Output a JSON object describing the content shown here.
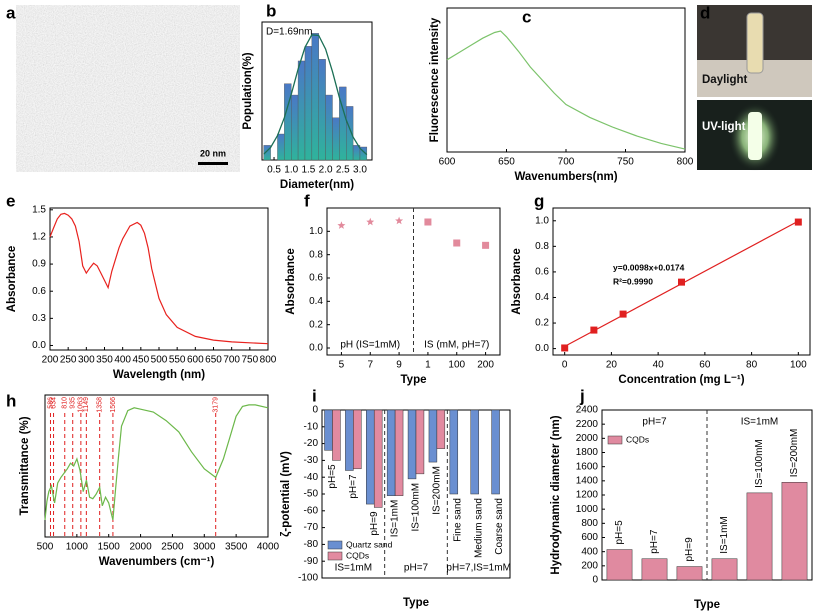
{
  "chart_data": [
    {
      "type": "image",
      "label": "a",
      "scale_bar": "20 nm"
    },
    {
      "type": "histogram",
      "label": "b",
      "xlabel": "Diameter(nm)",
      "ylabel": "Population(%)",
      "annotation": "D=1.69nm",
      "bins": [
        0.2,
        0.4,
        0.6,
        0.8,
        1.0,
        1.2,
        1.4,
        1.6,
        1.8,
        2.0,
        2.2,
        2.4,
        2.6,
        2.8,
        3.0,
        3.2
      ],
      "counts": [
        9,
        0,
        16,
        47,
        40,
        61,
        70,
        78,
        62,
        40,
        26,
        45,
        33,
        9,
        8
      ],
      "colors": [
        "#4a78c6",
        "#2fb39c"
      ],
      "fit_color": "#1b6f55",
      "fit": {
        "x": [
          0.2,
          0.4,
          0.6,
          0.8,
          1.0,
          1.2,
          1.4,
          1.6,
          1.8,
          2.0,
          2.2,
          2.4,
          2.6,
          2.8,
          3.0,
          3.2
        ],
        "values": [
          3.6,
          7.7,
          15.0,
          26.0,
          40.3,
          55.9,
          69.4,
          77.1,
          76.7,
          68.3,
          54.4,
          38.7,
          24.7,
          14.1,
          7.2,
          3.3
        ]
      },
      "xlim": [
        0.15,
        3.35
      ],
      "ylim": [
        0,
        85
      ],
      "xticks": [
        0.5,
        {
          "value": 1,
          "label": "1.0"
        },
        1.5,
        {
          "value": 2,
          "label": "2.0"
        },
        2.5,
        {
          "value": 3,
          "label": "3.0"
        }
      ]
    },
    {
      "type": "line",
      "label": "c",
      "xlabel": "Wavenumbers(nm)",
      "ylabel": "Fluorescence intensity",
      "color": "#7cc36b",
      "x": [
        600,
        610,
        620,
        630,
        640,
        645,
        650,
        660,
        670,
        680,
        690,
        700,
        720,
        740,
        760,
        780,
        800
      ],
      "values": [
        6.4,
        6.9,
        7.4,
        7.9,
        8.3,
        8.4,
        8.0,
        7.0,
        5.9,
        5.0,
        4.1,
        3.3,
        2.4,
        1.7,
        1.1,
        0.6,
        0.2
      ],
      "xlim": [
        600,
        800
      ],
      "ylim": [
        0,
        10
      ],
      "xticks": [
        600,
        650,
        700,
        750,
        800
      ]
    },
    {
      "type": "photo",
      "label": "d",
      "captions": [
        "Daylight",
        "UV-light"
      ]
    },
    {
      "type": "line",
      "label": "e",
      "xlabel": "Wavelength (nm)",
      "ylabel": "Absorbance",
      "color": "#e8221e",
      "x": [
        200,
        210,
        220,
        230,
        240,
        250,
        260,
        270,
        280,
        290,
        300,
        310,
        320,
        330,
        340,
        350,
        360,
        370,
        380,
        390,
        400,
        420,
        440,
        450,
        460,
        470,
        480,
        500,
        520,
        550,
        600,
        650,
        700,
        750,
        800
      ],
      "values": [
        1.2,
        1.3,
        1.4,
        1.45,
        1.46,
        1.44,
        1.4,
        1.32,
        1.15,
        0.88,
        0.8,
        0.86,
        0.91,
        0.88,
        0.8,
        0.72,
        0.64,
        0.82,
        0.95,
        1.08,
        1.18,
        1.32,
        1.36,
        1.33,
        1.24,
        1.08,
        0.85,
        0.52,
        0.34,
        0.2,
        0.1,
        0.06,
        0.04,
        0.03,
        0.02
      ],
      "xlim": [
        200,
        800
      ],
      "ylim": [
        -0.05,
        1.52
      ],
      "xticks": [
        200,
        250,
        300,
        350,
        400,
        450,
        500,
        550,
        600,
        650,
        700,
        750,
        800
      ],
      "yticks": [
        {
          "value": 0,
          "label": "0.0"
        },
        0.3,
        0.6,
        0.9,
        1.2,
        1.5
      ]
    },
    {
      "type": "scatter",
      "label": "f",
      "xlabel": "Type",
      "ylabel": "Absorbance",
      "color": "#e28a9c",
      "categories": [
        "5",
        "7",
        "9",
        "1",
        "100",
        "200"
      ],
      "values": [
        1.05,
        1.08,
        1.09,
        1.08,
        0.9,
        0.88
      ],
      "markers": [
        "star",
        "star",
        "star",
        "square",
        "square",
        "square"
      ],
      "groups": [
        "pH (IS=1mM)",
        "IS (mM, pH=7)"
      ],
      "group_label_position": "bottom",
      "ylim": [
        -0.06,
        1.2
      ],
      "yticks": [
        {
          "value": 0,
          "label": "0.0"
        },
        0.2,
        0.4,
        0.6,
        0.8,
        {
          "value": 1,
          "label": "1.0"
        }
      ]
    },
    {
      "type": "scatter",
      "label": "g",
      "xlabel": "Concentration (mg L⁻¹)",
      "ylabel": "Absorbance",
      "color": "#e02020",
      "x": [
        0,
        12.5,
        25,
        50,
        100
      ],
      "values": [
        0.005,
        0.145,
        0.27,
        0.52,
        0.99
      ],
      "fit": {
        "x": [
          0,
          100
        ],
        "values": [
          0.0174,
          0.9974
        ]
      },
      "annotations": [
        "y=0.0098x+0.0174",
        "R²=0.9990"
      ],
      "xlim": [
        -5,
        105
      ],
      "ylim": [
        -0.05,
        1.1
      ],
      "xticks": [
        0,
        20,
        40,
        60,
        80,
        100
      ],
      "yticks": [
        {
          "value": 0,
          "label": "0.0"
        },
        0.2,
        0.4,
        0.6,
        0.8,
        {
          "value": 1,
          "label": "1.0"
        }
      ]
    },
    {
      "type": "line",
      "label": "h",
      "xlabel": "Wavenumbers (cm⁻¹)",
      "ylabel": "Transmittance (%)",
      "color": "#6cb84a",
      "peak_color": "#e02020",
      "x": [
        500,
        530,
        560,
        600,
        650,
        700,
        750,
        800,
        850,
        900,
        950,
        1000,
        1050,
        1100,
        1150,
        1200,
        1250,
        1300,
        1358,
        1400,
        1450,
        1500,
        1566,
        1600,
        1650,
        1700,
        1800,
        1900,
        2000,
        2200,
        2400,
        2600,
        2800,
        3000,
        3179,
        3300,
        3400,
        3500,
        3600,
        3700,
        3800,
        4000
      ],
      "values": [
        12,
        25,
        32,
        36,
        24,
        38,
        42,
        45,
        48,
        52,
        50,
        55,
        47,
        32,
        40,
        28,
        27,
        30,
        35,
        22,
        28,
        24,
        12,
        30,
        55,
        78,
        89,
        91,
        90,
        88,
        82,
        74,
        60,
        48,
        42,
        55,
        70,
        85,
        92,
        93,
        93,
        91
      ],
      "peaks": [
        586,
        634,
        810,
        935,
        1063,
        1149,
        1358,
        1566,
        3179
      ],
      "xlim": [
        500,
        4000
      ],
      "ylim": [
        0,
        100
      ],
      "xticks": [
        500,
        1000,
        1500,
        2000,
        2500,
        3000,
        3500,
        4000
      ]
    },
    {
      "type": "bar",
      "label": "i",
      "xlabel": "Type",
      "ylabel": "ζ-potential (mV)",
      "categories": [
        "pH=5",
        "pH=7",
        "pH=9",
        "IS=1mM",
        "IS=100mM",
        "IS=200mM",
        "Fine sand",
        "Medium sand",
        "Coarse sand"
      ],
      "series": [
        {
          "name": "Quartz sand",
          "color": "#6a8fd1",
          "values": [
            -24,
            -36,
            -56,
            -51,
            -41,
            -31,
            -50,
            -50,
            -50
          ]
        },
        {
          "name": "CQDs",
          "color": "#e28aa0",
          "values": [
            -30,
            -35,
            -58,
            -51,
            -38,
            -23,
            null,
            null,
            null
          ]
        }
      ],
      "groups": [
        "IS=1mM",
        "pH=7",
        "pH=7,IS=1mM"
      ],
      "group_label_position": "bottom",
      "legend": "lower left",
      "ylim": [
        -100,
        0
      ],
      "yticks": [
        0,
        -10,
        -20,
        -30,
        -40,
        -50,
        -60,
        -70,
        -80,
        -90,
        -100
      ]
    },
    {
      "type": "bar",
      "label": "j",
      "xlabel": "Type",
      "ylabel": "Hydrodynamic diameter (nm)",
      "categories": [
        "pH=5",
        "pH=7",
        "pH=9",
        "IS=1mM",
        "IS=100mM",
        "IS=200mM"
      ],
      "series": [
        {
          "name": "CQDs",
          "color": "#e08aa0",
          "values": [
            430,
            300,
            190,
            300,
            1230,
            1380
          ]
        }
      ],
      "groups": [
        "pH=7",
        "IS=1mM"
      ],
      "group_label_position": "top",
      "legend": "upper left",
      "ylim": [
        0,
        2400
      ],
      "yticks": [
        0,
        200,
        400,
        600,
        800,
        1000,
        1200,
        1400,
        1600,
        1800,
        2000,
        2200,
        2400
      ]
    }
  ]
}
